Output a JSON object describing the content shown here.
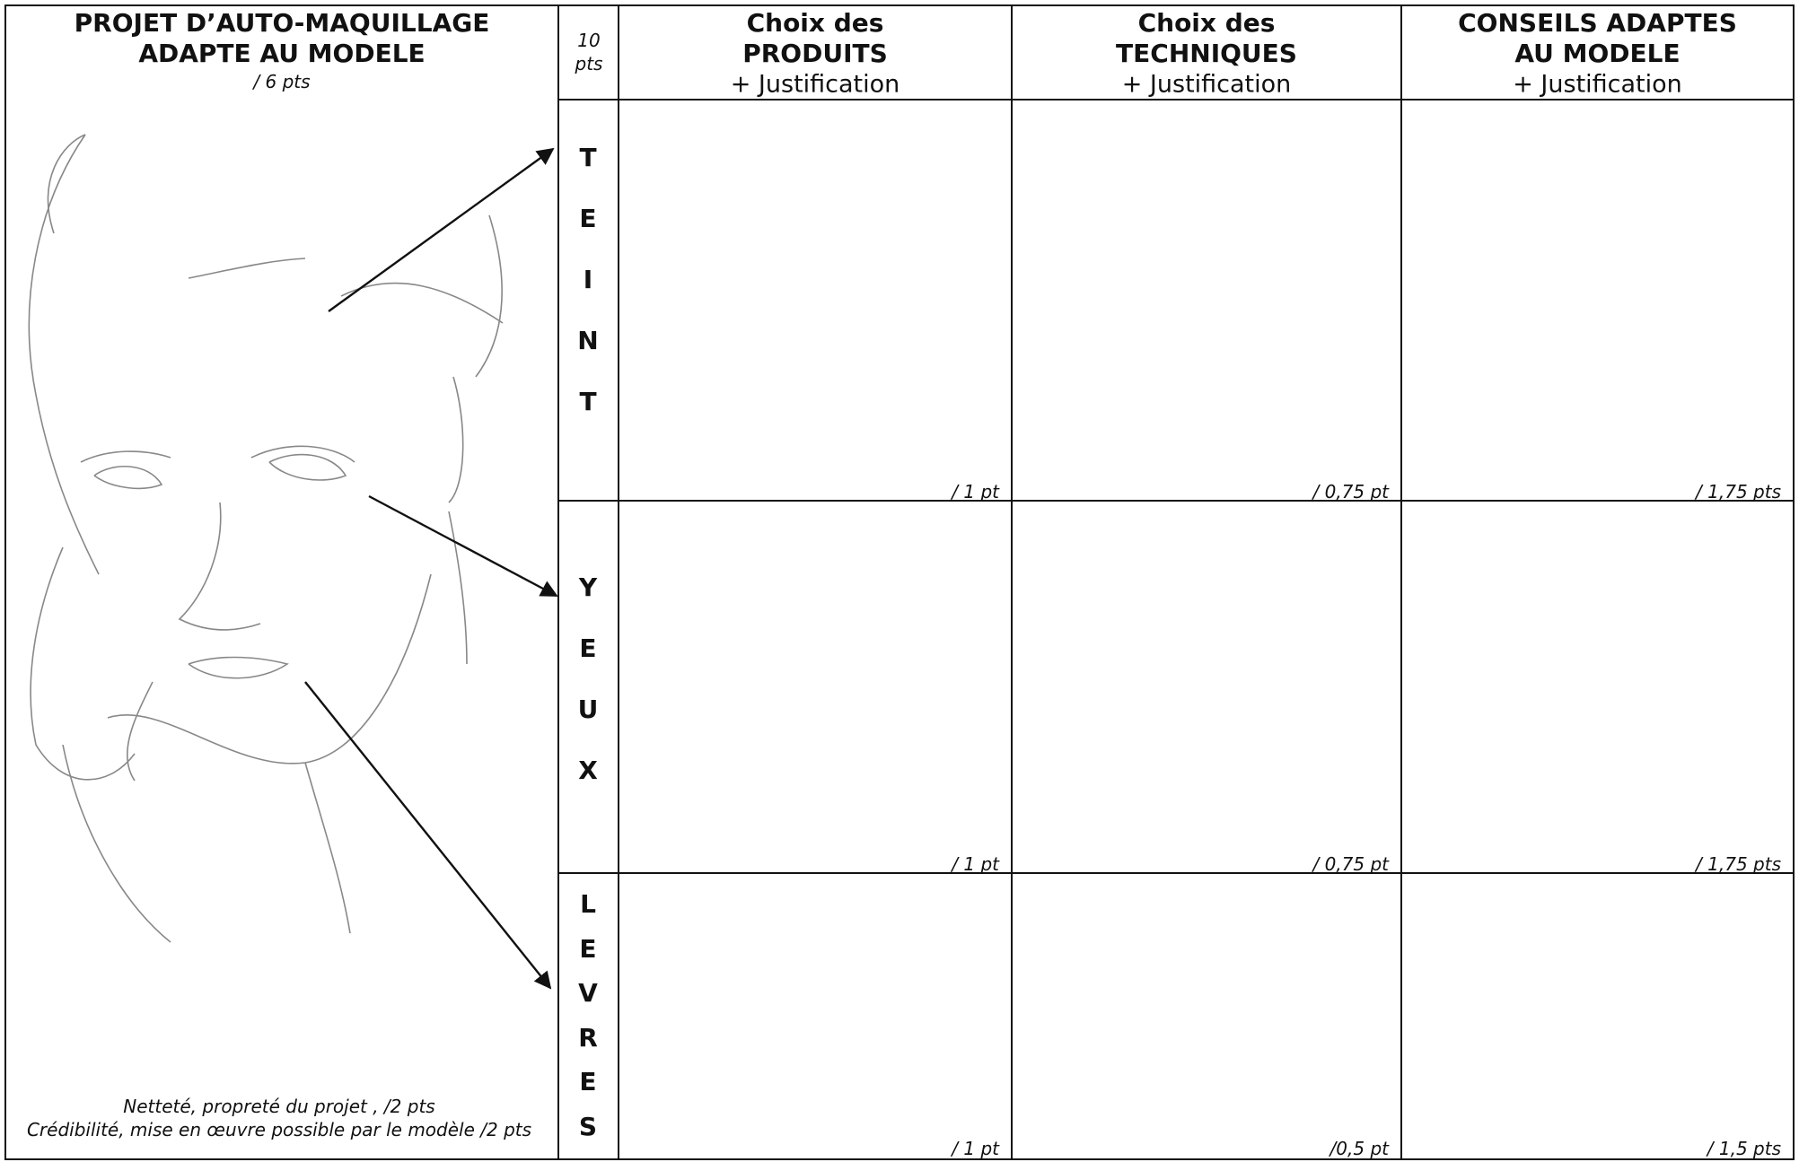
{
  "left_panel": {
    "title": [
      "PROJET D’AUTO-MAQUILLAGE",
      "ADAPTE AU MODELE"
    ],
    "subtitle": "/ 6 pts",
    "notes": [
      "Netteté, propreté du projet ,  /2 pts",
      "Crédibilité, mise en œuvre possible par le modèle  /2 pts"
    ]
  },
  "table": {
    "points_header": [
      "10",
      "pts"
    ],
    "columns": [
      {
        "lines": [
          "Choix des",
          "PRODUITS"
        ],
        "sub": "+ Justification"
      },
      {
        "lines": [
          "Choix des",
          "TECHNIQUES"
        ],
        "sub": "+ Justification"
      },
      {
        "lines": [
          "CONSEILS ADAPTES",
          "AU MODELE"
        ],
        "sub": "+ Justification"
      }
    ],
    "rows": [
      {
        "label": [
          "T",
          "E",
          "I",
          "N",
          "T"
        ],
        "scores": [
          "/ 1 pt",
          "/ 0,75 pt",
          "/ 1,75 pts"
        ]
      },
      {
        "label": [
          "Y",
          "E",
          "U",
          "X"
        ],
        "scores": [
          "/ 1 pt",
          "/ 0,75 pt",
          "/ 1,75 pts"
        ]
      },
      {
        "label": [
          "L",
          "E",
          "V",
          "R",
          "E",
          "S"
        ],
        "scores": [
          "/ 1 pt",
          "/0,5  pt",
          "/ 1,5 pts"
        ]
      }
    ]
  }
}
